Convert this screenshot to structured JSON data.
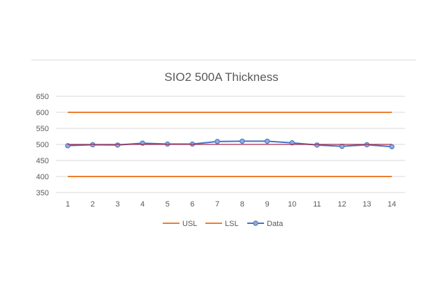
{
  "chart_data": {
    "type": "line",
    "title": "SIO2 500A Thickness",
    "xlabel": "",
    "ylabel": "",
    "categories": [
      "1",
      "2",
      "3",
      "4",
      "5",
      "6",
      "7",
      "8",
      "9",
      "10",
      "11",
      "12",
      "13",
      "14"
    ],
    "ylim": [
      350,
      650
    ],
    "yticks": [
      "350",
      "400",
      "450",
      "500",
      "550",
      "600",
      "650"
    ],
    "grid": true,
    "legend_position": "bottom",
    "series": [
      {
        "name": "USL",
        "color": "#ED7D31",
        "marker": false,
        "values": [
          600,
          600,
          600,
          600,
          600,
          600,
          600,
          600,
          600,
          600,
          600,
          600,
          600,
          600
        ]
      },
      {
        "name": "LSL",
        "color": "#ED7D31",
        "marker": false,
        "values": [
          400,
          400,
          400,
          400,
          400,
          400,
          400,
          400,
          400,
          400,
          400,
          400,
          400,
          400
        ]
      },
      {
        "name": "Data",
        "color": "#4472C4",
        "marker": true,
        "values": [
          496,
          499,
          498,
          504,
          501,
          501,
          509,
          510,
          510,
          505,
          498,
          494,
          499,
          493
        ]
      },
      {
        "name": "",
        "color": "#A52A4A",
        "marker": false,
        "in_legend": false,
        "values": [
          500,
          500,
          500,
          500,
          500,
          500,
          500,
          500,
          500,
          500,
          500,
          500,
          500,
          500
        ]
      }
    ]
  }
}
